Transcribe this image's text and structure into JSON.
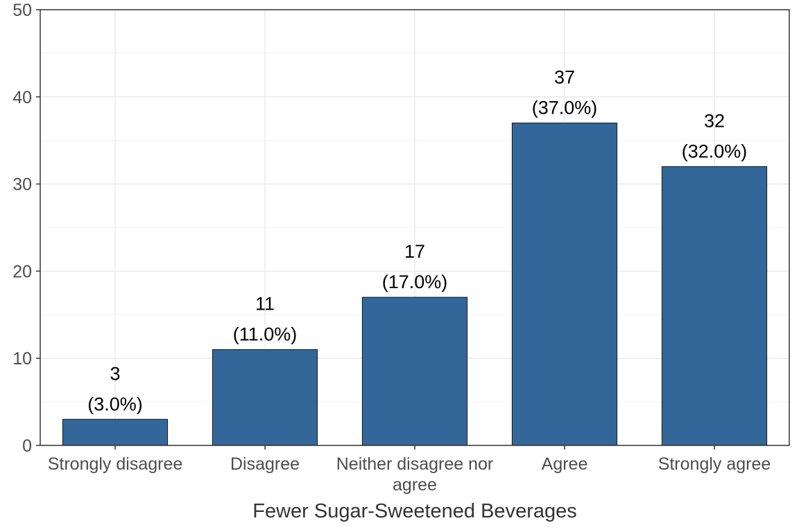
{
  "chart_data": {
    "type": "bar",
    "title": "",
    "xlabel": "Fewer Sugar-Sweetened Beverages",
    "ylabel": "",
    "ylim": [
      0,
      50
    ],
    "yticks": [
      0,
      10,
      20,
      30,
      40,
      50
    ],
    "grid": true,
    "legend": "none",
    "categories": [
      [
        "Strongly disagree"
      ],
      [
        "Disagree"
      ],
      [
        "Neither disagree nor",
        "agree"
      ],
      [
        "Agree"
      ],
      [
        "Strongly agree"
      ]
    ],
    "values": [
      3,
      11,
      17,
      37,
      32
    ],
    "value_labels": [
      "3",
      "11",
      "17",
      "37",
      "32"
    ],
    "percent_labels": [
      "(3.0%)",
      "(11.0%)",
      "(17.0%)",
      "(37.0%)",
      "(32.0%)"
    ],
    "colors": {
      "bar_fill": "#336699",
      "bar_stroke": "#1a1a1a",
      "grid_major": "#ebebeb",
      "grid_minor": "#f3f3f3",
      "panel_border": "#333333"
    }
  }
}
